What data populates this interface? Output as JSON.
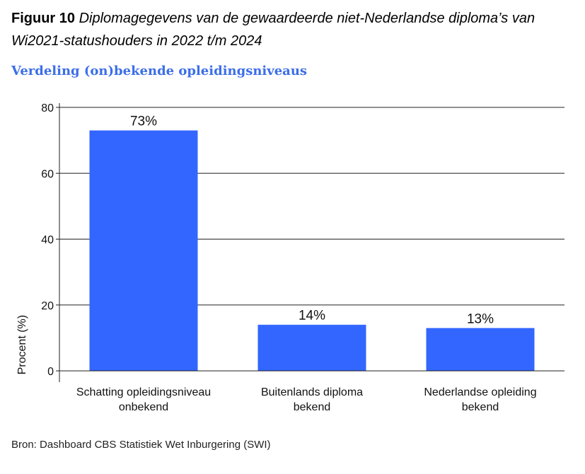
{
  "figure": {
    "label": "Figuur 10",
    "title": "Diplomagegevens van de gewaardeerde niet-Nederlandse diploma’s van Wi2021-statushouders in 2022 t/m 2024"
  },
  "chart_data": {
    "type": "bar",
    "title": "Verdeling (on)bekende opleidingsniveaus",
    "categories": [
      [
        "Schatting opleidingsniveau",
        "onbekend"
      ],
      [
        "Buitenlands diploma",
        "bekend"
      ],
      [
        "Nederlandse opleiding",
        "bekend"
      ]
    ],
    "values": [
      73,
      14,
      13
    ],
    "data_labels": [
      "73%",
      "14%",
      "13%"
    ],
    "xlabel": "",
    "ylabel": "Procent (%)",
    "ylim": [
      0,
      80
    ],
    "yticks": [
      0,
      20,
      40,
      60,
      80
    ],
    "grid": true,
    "bar_color": "#3366ff"
  },
  "source": "Bron: Dashboard CBS Statistiek Wet Inburgering (SWI)"
}
